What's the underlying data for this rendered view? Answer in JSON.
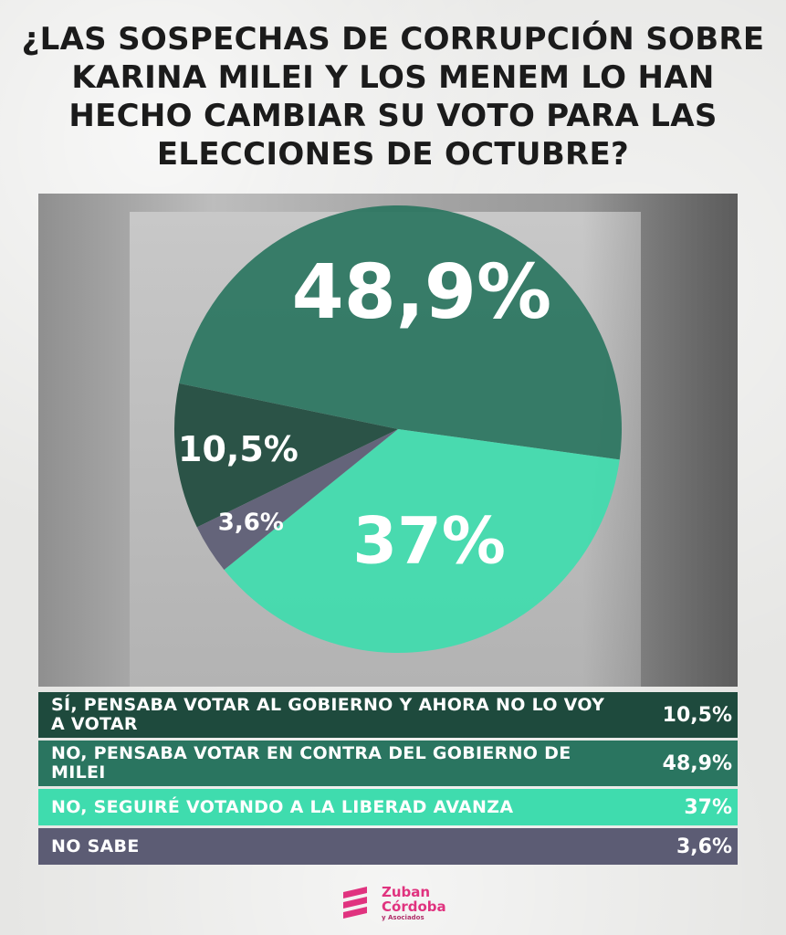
{
  "title": "¿LAS SOSPECHAS DE CORRUPCIÓN SOBRE KARINA MILEI Y LOS MENEM LO HAN HECHO CAMBIAR SU VOTO PARA LAS ELECCIONES DE OCTUBRE?",
  "chart_data": {
    "type": "pie",
    "title": "¿LAS SOSPECHAS DE CORRUPCIÓN SOBRE KARINA MILEI Y LOS MENEM LO HAN HECHO CAMBIAR SU VOTO PARA LAS ELECCIONES DE OCTUBRE?",
    "slices": [
      {
        "label": "SÍ, PENSABA VOTAR AL GOBIERNO Y AHORA NO LO VOY A VOTAR",
        "value": 10.5,
        "display": "10,5%",
        "color": "#1e4a3d"
      },
      {
        "label": "NO, PENSABA VOTAR EN CONTRA DEL GOBIERNO DE MILEI",
        "value": 48.9,
        "display": "48,9%",
        "color": "#2a7560"
      },
      {
        "label": "NO, SEGUIRÉ VOTANDO A LA LIBERAD AVANZA",
        "value": 37,
        "display": "37%",
        "color": "#3fdcae"
      },
      {
        "label": "NO SABE",
        "value": 3.6,
        "display": "3,6%",
        "color": "#5c5c74"
      }
    ],
    "legend_placement": "bottom"
  },
  "legend": [
    {
      "label": "SÍ, PENSABA VOTAR AL GOBIERNO Y AHORA NO LO VOY A VOTAR",
      "value": "10,5%"
    },
    {
      "label": "NO, PENSABA VOTAR EN CONTRA DEL GOBIERNO DE MILEI",
      "value": "48,9%"
    },
    {
      "label": "NO, SEGUIRÉ VOTANDO A LA LIBERAD AVANZA",
      "value": "37%"
    },
    {
      "label": "NO SABE",
      "value": "3,6%"
    }
  ],
  "logo": {
    "line1": "Zuban",
    "line2": "Córdoba",
    "line3": "y Asociados",
    "color": "#e0337f"
  }
}
